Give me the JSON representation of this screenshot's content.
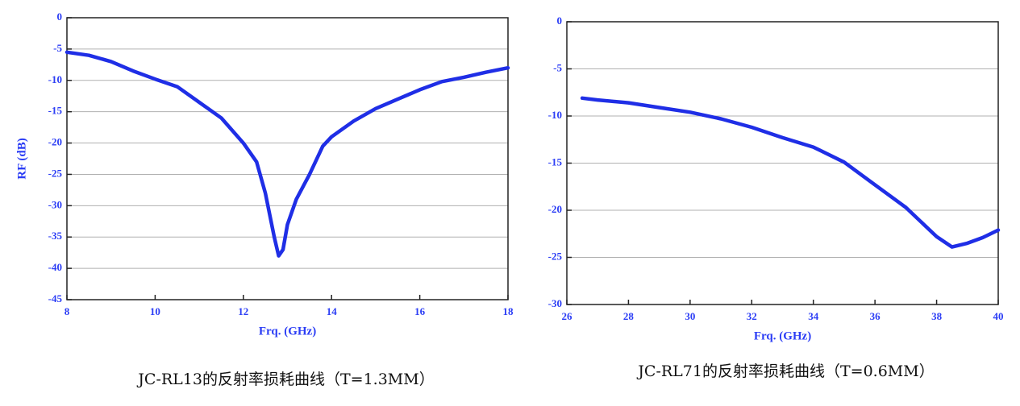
{
  "chart_data": [
    {
      "type": "line",
      "xlabel": "Frq. (GHz)",
      "ylabel": "RF (dB)",
      "caption": "JC-RL13的反射率损耗曲线（T=1.3MM）",
      "xlim": [
        8,
        18
      ],
      "xticks": [
        8,
        10,
        12,
        14,
        16,
        18
      ],
      "ylim": [
        -45,
        0
      ],
      "yticks": [
        -45,
        -40,
        -35,
        -30,
        -25,
        -20,
        -15,
        -10,
        -5,
        0
      ],
      "grid": true,
      "series": [
        {
          "color": "#1f2ee6",
          "x": [
            8,
            8.5,
            9,
            9.5,
            10,
            10.5,
            11,
            11.5,
            12,
            12.3,
            12.5,
            12.7,
            12.8,
            12.9,
            13,
            13.2,
            13.5,
            13.8,
            14,
            14.5,
            15,
            15.5,
            16,
            16.5,
            17,
            17.5,
            18
          ],
          "values": [
            -5.5,
            -6,
            -7,
            -8.5,
            -9.8,
            -11,
            -13.5,
            -16,
            -20,
            -23,
            -28,
            -35,
            -38,
            -37,
            -33,
            -29,
            -25,
            -20.5,
            -19,
            -16.5,
            -14.5,
            -13,
            -11.5,
            -10.2,
            -9.5,
            -8.7,
            -8
          ]
        }
      ]
    },
    {
      "type": "line",
      "xlabel": "Frq. (GHz)",
      "caption": "JC-RL71的反射率损耗曲线（T=0.6MM）",
      "xlim": [
        26,
        40
      ],
      "xticks": [
        26,
        28,
        30,
        32,
        34,
        36,
        38,
        40
      ],
      "ylim": [
        -30,
        0
      ],
      "yticks": [
        -30,
        -25,
        -20,
        -15,
        -10,
        -5,
        0
      ],
      "grid": true,
      "series": [
        {
          "color": "#1f2ee6",
          "x": [
            26.5,
            27,
            28,
            29,
            30,
            31,
            32,
            33,
            34,
            35,
            36,
            37,
            38,
            38.5,
            39,
            39.5,
            40
          ],
          "values": [
            -8.1,
            -8.3,
            -8.6,
            -9.1,
            -9.6,
            -10.3,
            -11.2,
            -12.3,
            -13.3,
            -14.9,
            -17.3,
            -19.7,
            -22.8,
            -23.9,
            -23.5,
            -22.9,
            -22.1
          ]
        }
      ]
    }
  ]
}
